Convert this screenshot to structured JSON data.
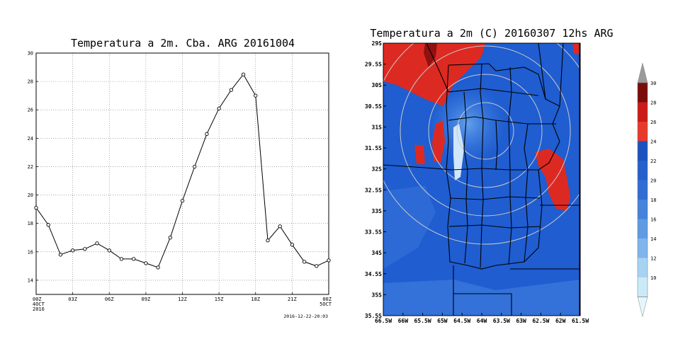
{
  "chart_data": [
    {
      "type": "line",
      "title": "Temperatura a 2m. Cba. ARG 20161004",
      "xlabel": "",
      "ylabel": "",
      "ylim": [
        13,
        30
      ],
      "grid": true,
      "yticks": [
        "14",
        "16",
        "18",
        "20",
        "22",
        "24",
        "26",
        "28",
        "30"
      ],
      "xtick_labels": [
        "00Z\n4OCT\n2016",
        "03Z",
        "06Z",
        "09Z",
        "12Z",
        "15Z",
        "18Z",
        "21Z",
        "00Z\n5OCT"
      ],
      "x_hours": [
        0,
        1,
        2,
        3,
        4,
        5,
        6,
        7,
        8,
        9,
        10,
        11,
        12,
        13,
        14,
        15,
        16,
        17,
        18,
        19,
        20,
        21,
        22,
        23,
        24
      ],
      "values": [
        19.1,
        17.9,
        15.8,
        16.1,
        16.2,
        16.6,
        16.1,
        15.5,
        15.5,
        15.2,
        14.9,
        17.0,
        19.6,
        22.0,
        24.3,
        26.1,
        27.4,
        28.5,
        27.0,
        16.8,
        17.8,
        16.5,
        15.3,
        15.0,
        15.4
      ],
      "footer": "2016-12-22-20:03"
    },
    {
      "type": "heatmap",
      "title": "Temperatura a 2m (C) 20160307 12hs ARG",
      "ylabels": [
        "29S",
        "29.5S",
        "30S",
        "30.5S",
        "31S",
        "31.5S",
        "32S",
        "32.5S",
        "33S",
        "33.5S",
        "34S",
        "34.5S",
        "35S",
        "35.5S"
      ],
      "xlabels": [
        "66.5W",
        "66W",
        "65.5W",
        "65W",
        "64.5W",
        "64W",
        "63.5W",
        "63W",
        "62.5W",
        "62W",
        "61.5W"
      ],
      "lat_range": [
        -35.5,
        -29
      ],
      "lon_range": [
        -66.5,
        -61.5
      ],
      "colorbar": {
        "ticks": [
          "30",
          "28",
          "26",
          "24",
          "22",
          "20",
          "18",
          "16",
          "14",
          "12",
          "10"
        ],
        "colors": [
          "#7a0c0c",
          "#cc1a1a",
          "#e83a2a",
          "#1c52c0",
          "#2560cc",
          "#306ed4",
          "#4583dc",
          "#5f9ae4",
          "#7fb4ec",
          "#a7d3f2",
          "#cbeaf8"
        ],
        "top_arrow_color": "#9a9a9a",
        "bottom_arrow_color": "#e4f6fb"
      }
    }
  ]
}
